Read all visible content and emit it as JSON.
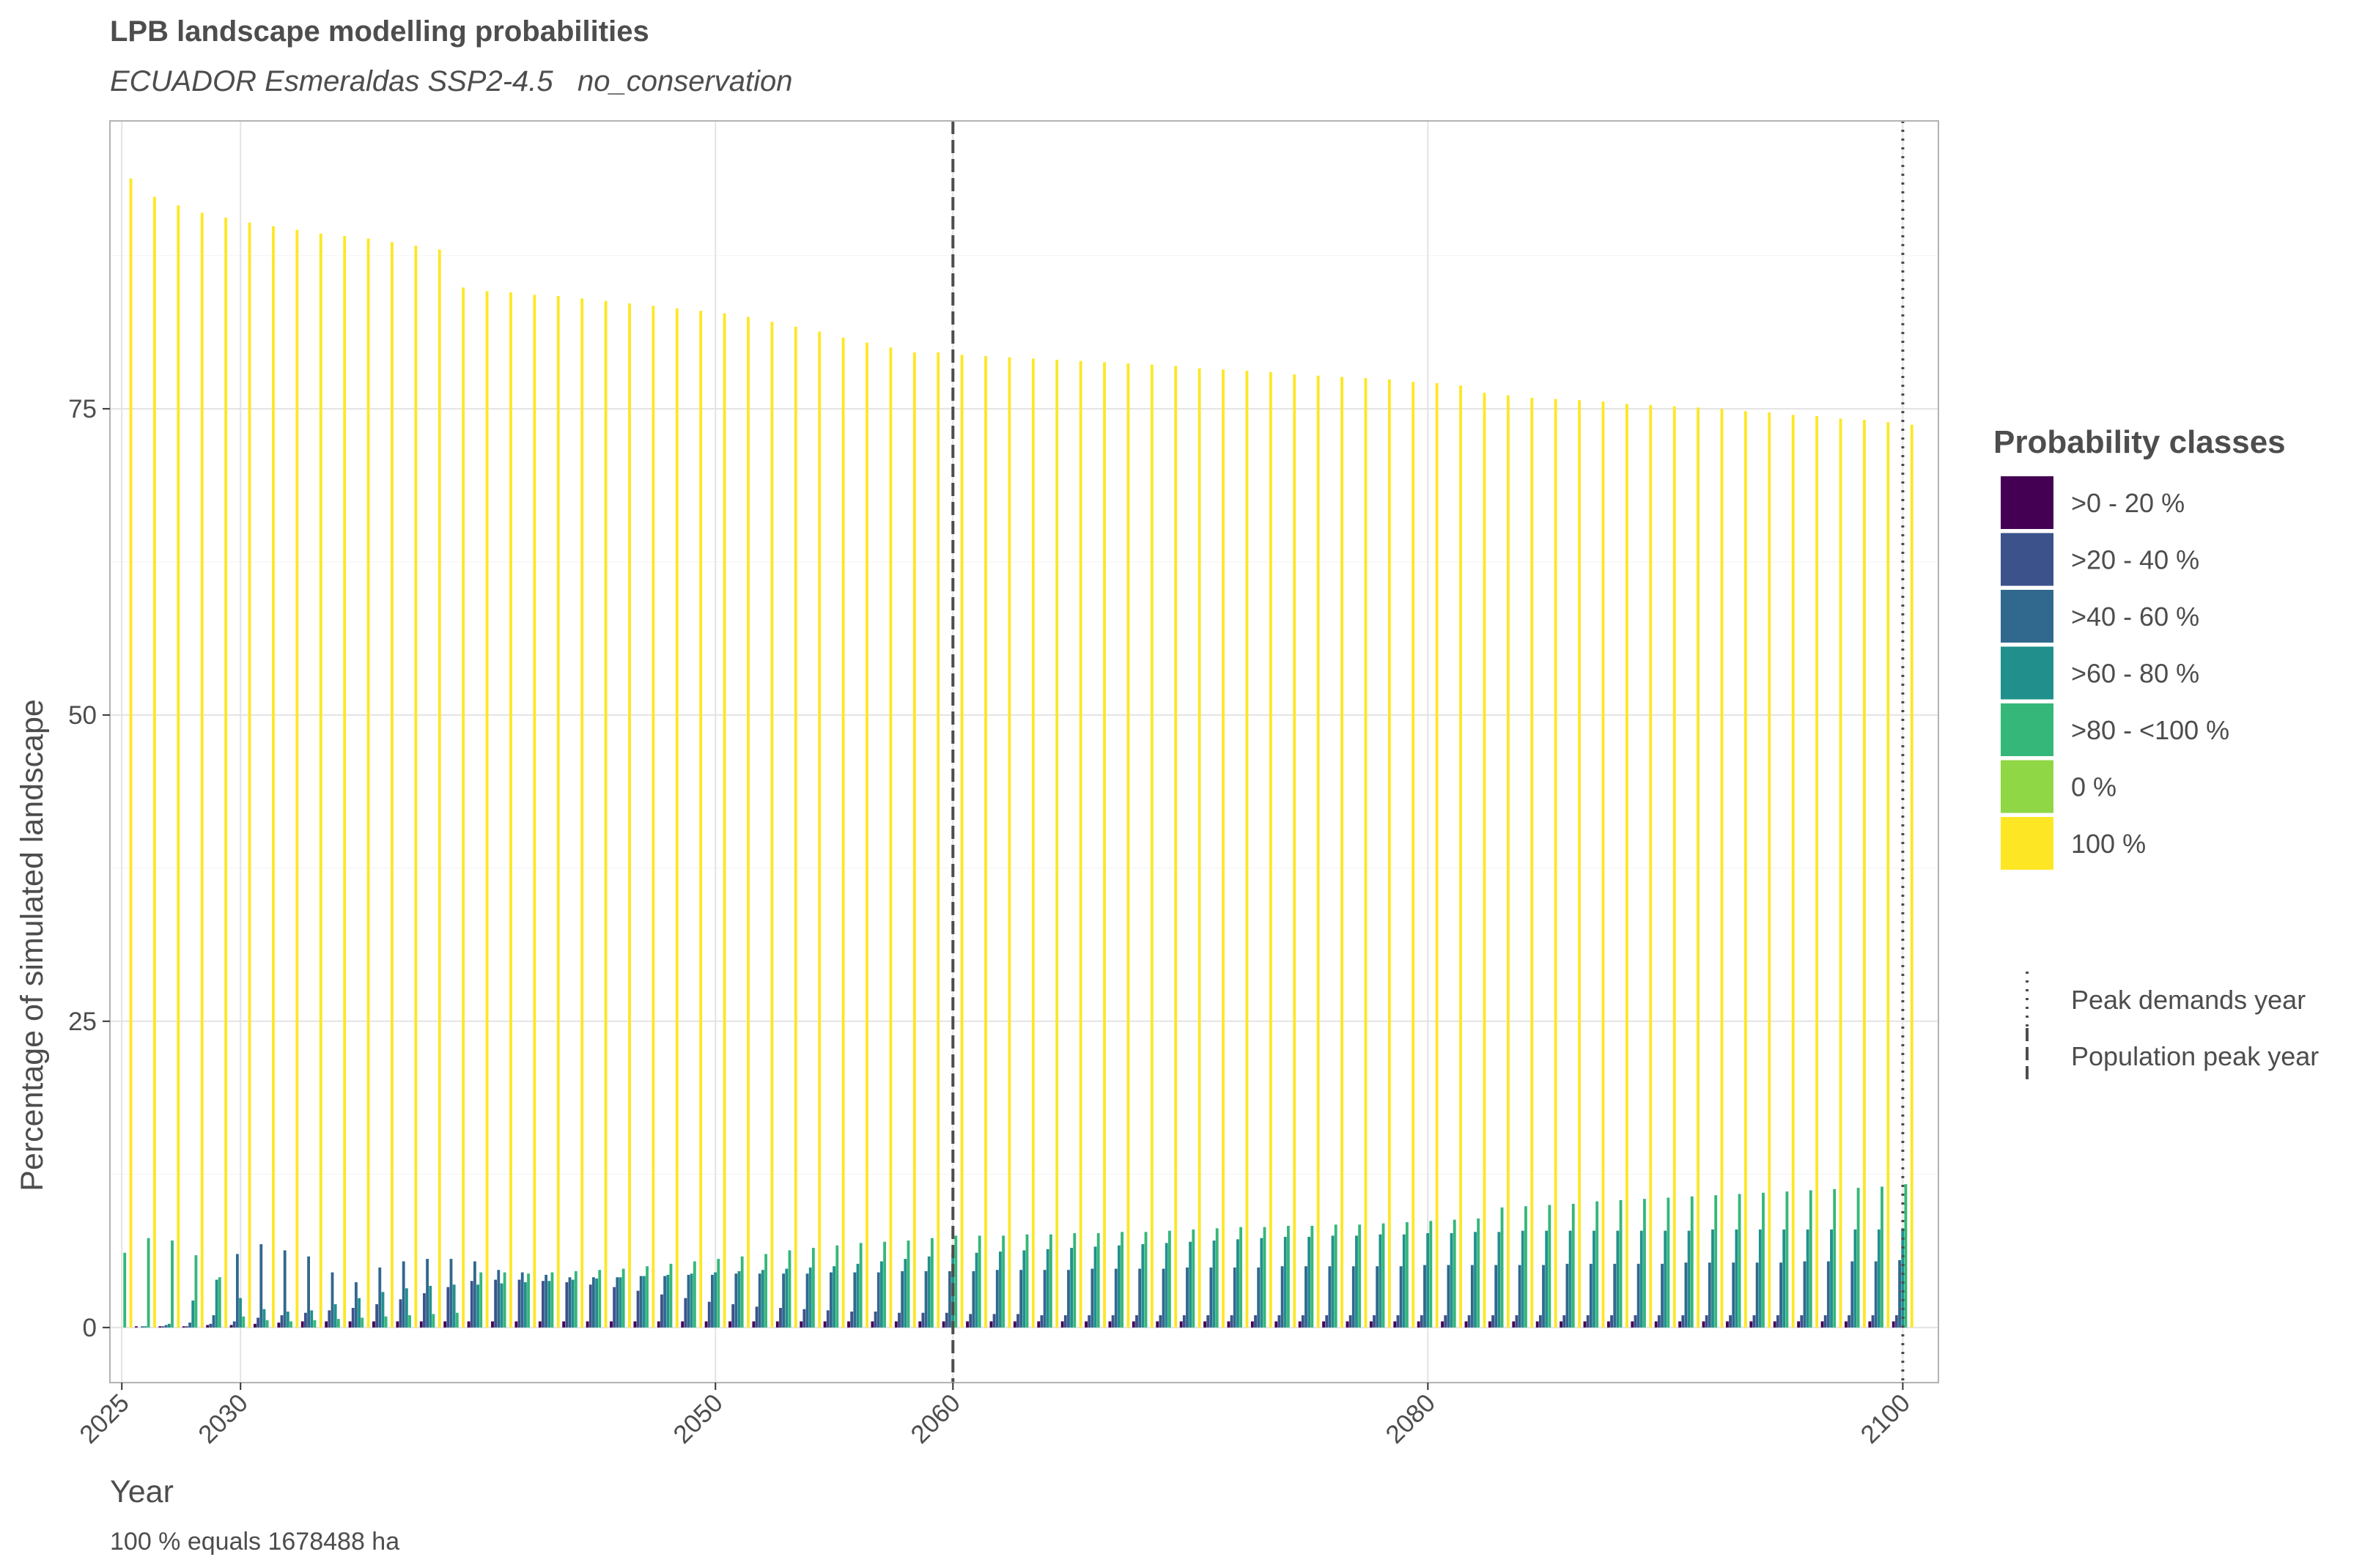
{
  "chart_data": {
    "type": "bar",
    "title": "LPB landscape modelling probabilities",
    "subtitle": "ECUADOR Esmeraldas SSP2-4.5   no_conservation",
    "xlabel": "Year",
    "ylabel": "Percentage of simulated landscape",
    "caption": "100 % equals 1678488 ha",
    "x_ticks": [
      "2025",
      "2030",
      "2050",
      "2060",
      "2080",
      "2100"
    ],
    "y_ticks": [
      "0",
      "25",
      "50",
      "75"
    ],
    "xlim": [
      2024.5,
      2101.5
    ],
    "ylim": [
      -4.5,
      98.5
    ],
    "grid": true,
    "legend_title": "Probability classes",
    "legend_position": "right",
    "vlines": [
      {
        "name": "Peak demands year",
        "x": 2100,
        "style": "dotted"
      },
      {
        "name": "Population peak year",
        "x": 2060,
        "style": "dashed"
      }
    ],
    "years": [
      2025,
      2026,
      2027,
      2028,
      2029,
      2030,
      2031,
      2032,
      2033,
      2034,
      2035,
      2036,
      2037,
      2038,
      2039,
      2040,
      2041,
      2042,
      2043,
      2044,
      2045,
      2046,
      2047,
      2048,
      2049,
      2050,
      2051,
      2052,
      2053,
      2054,
      2055,
      2056,
      2057,
      2058,
      2059,
      2060,
      2061,
      2062,
      2063,
      2064,
      2065,
      2066,
      2067,
      2068,
      2069,
      2070,
      2071,
      2072,
      2073,
      2074,
      2075,
      2076,
      2077,
      2078,
      2079,
      2080,
      2081,
      2082,
      2083,
      2084,
      2085,
      2086,
      2087,
      2088,
      2089,
      2090,
      2091,
      2092,
      2093,
      2094,
      2095,
      2096,
      2097,
      2098,
      2099,
      2100
    ],
    "series": [
      {
        "name": ">0 - 20 %",
        "color": "#440154",
        "values": [
          0,
          0.1,
          0.1,
          0.1,
          0.2,
          0.2,
          0.3,
          0.4,
          0.5,
          0.5,
          0.5,
          0.5,
          0.5,
          0.5,
          0.5,
          0.5,
          0.5,
          0.5,
          0.5,
          0.5,
          0.5,
          0.5,
          0.5,
          0.5,
          0.5,
          0.5,
          0.5,
          0.5,
          0.5,
          0.5,
          0.5,
          0.5,
          0.5,
          0.5,
          0.5,
          0.5,
          0.5,
          0.5,
          0.5,
          0.5,
          0.5,
          0.5,
          0.5,
          0.5,
          0.5,
          0.5,
          0.5,
          0.5,
          0.5,
          0.5,
          0.5,
          0.5,
          0.5,
          0.5,
          0.5,
          0.5,
          0.5,
          0.5,
          0.5,
          0.5,
          0.5,
          0.5,
          0.5,
          0.5,
          0.5,
          0.5,
          0.5,
          0.5,
          0.5,
          0.5,
          0.5,
          0.5,
          0.5,
          0.5,
          0.5,
          0.5
        ]
      },
      {
        "name": ">20 - 40 %",
        "color": "#3b528b",
        "values": [
          0,
          0,
          0.1,
          0.1,
          0.3,
          0.5,
          0.8,
          1.0,
          1.2,
          1.4,
          1.6,
          1.9,
          2.3,
          2.8,
          3.3,
          3.8,
          3.9,
          3.9,
          3.8,
          3.7,
          3.5,
          3.3,
          3.0,
          2.7,
          2.4,
          2.1,
          1.9,
          1.7,
          1.6,
          1.5,
          1.4,
          1.3,
          1.3,
          1.2,
          1.2,
          1.2,
          1.1,
          1.1,
          1.1,
          1.0,
          1.0,
          1.0,
          1.0,
          1.0,
          1.0,
          1.0,
          1.0,
          1.0,
          1.0,
          1.0,
          1.0,
          1.0,
          1.0,
          1.0,
          1.0,
          1.0,
          1.0,
          1.0,
          1.0,
          1.0,
          1.0,
          1.0,
          1.0,
          1.0,
          1.0,
          1.0,
          1.0,
          1.0,
          1.0,
          1.0,
          1.0,
          1.0,
          1.0,
          1.0,
          1.0,
          1.0
        ]
      },
      {
        "name": ">40 - 60 %",
        "color": "#31688e",
        "values": [
          0,
          0.1,
          0.2,
          0.4,
          1.0,
          6.0,
          6.8,
          6.3,
          5.8,
          4.5,
          3.7,
          4.9,
          5.4,
          5.6,
          5.6,
          5.4,
          4.7,
          4.5,
          4.3,
          4.1,
          4.1,
          4.1,
          4.2,
          4.2,
          4.3,
          4.3,
          4.4,
          4.4,
          4.4,
          4.4,
          4.5,
          4.5,
          4.5,
          4.6,
          4.6,
          4.6,
          4.6,
          4.7,
          4.7,
          4.7,
          4.7,
          4.8,
          4.8,
          4.8,
          4.8,
          4.9,
          4.9,
          4.9,
          4.9,
          5.0,
          5.0,
          5.0,
          5.0,
          5.0,
          5.0,
          5.1,
          5.1,
          5.1,
          5.1,
          5.1,
          5.1,
          5.2,
          5.2,
          5.2,
          5.2,
          5.2,
          5.3,
          5.3,
          5.3,
          5.3,
          5.3,
          5.4,
          5.4,
          5.4,
          5.4,
          5.5
        ]
      },
      {
        "name": ">60 - 80 %",
        "color": "#21908d",
        "values": [
          0,
          0.1,
          0.3,
          2.2,
          3.9,
          2.4,
          1.5,
          1.3,
          1.4,
          1.9,
          2.4,
          2.9,
          3.2,
          3.4,
          3.5,
          3.5,
          3.6,
          3.7,
          3.8,
          3.9,
          4.0,
          4.1,
          4.2,
          4.3,
          4.4,
          4.5,
          4.6,
          4.7,
          4.8,
          4.9,
          5.0,
          5.2,
          5.4,
          5.6,
          5.8,
          6.0,
          6.1,
          6.2,
          6.3,
          6.4,
          6.5,
          6.6,
          6.7,
          6.8,
          6.9,
          7.0,
          7.1,
          7.2,
          7.3,
          7.4,
          7.4,
          7.5,
          7.5,
          7.6,
          7.6,
          7.7,
          7.7,
          7.8,
          7.8,
          7.9,
          7.9,
          7.9,
          7.9,
          7.9,
          7.9,
          7.9,
          7.9,
          8.0,
          8.0,
          8.0,
          8.0,
          8.0,
          8.0,
          8.0,
          8.0,
          8.1
        ]
      },
      {
        "name": ">80 - <100 %",
        "color": "#35b779",
        "values": [
          6.1,
          7.3,
          7.1,
          5.9,
          4.1,
          0.9,
          0.6,
          0.5,
          0.6,
          0.7,
          0.8,
          0.9,
          1.0,
          1.1,
          1.2,
          4.5,
          4.5,
          4.4,
          4.5,
          4.6,
          4.7,
          4.8,
          5.0,
          5.2,
          5.4,
          5.6,
          5.8,
          6.0,
          6.3,
          6.5,
          6.7,
          6.9,
          7.0,
          7.1,
          7.3,
          7.5,
          7.5,
          7.5,
          7.6,
          7.6,
          7.7,
          7.7,
          7.8,
          7.8,
          7.9,
          8.0,
          8.1,
          8.2,
          8.2,
          8.3,
          8.3,
          8.4,
          8.4,
          8.5,
          8.6,
          8.7,
          8.8,
          8.9,
          9.8,
          9.9,
          10.0,
          10.1,
          10.3,
          10.4,
          10.5,
          10.6,
          10.7,
          10.8,
          10.9,
          11.0,
          11.1,
          11.2,
          11.3,
          11.4,
          11.5,
          11.7
        ]
      },
      {
        "name": "0 %",
        "color": "#8fd744",
        "values": [
          0,
          0,
          0,
          0,
          0,
          0,
          0,
          0,
          0,
          0,
          0,
          0,
          0,
          0,
          0,
          0,
          0,
          0,
          0,
          0,
          0,
          0,
          0,
          0,
          0,
          0,
          0,
          0,
          0,
          0,
          0,
          0,
          0,
          0,
          0,
          0,
          0,
          0,
          0,
          0,
          0,
          0,
          0,
          0,
          0,
          0,
          0,
          0,
          0,
          0,
          0,
          0,
          0,
          0,
          0,
          0,
          0,
          0,
          0,
          0,
          0,
          0,
          0,
          0,
          0,
          0,
          0,
          0,
          0,
          0,
          0,
          0,
          0,
          0,
          0,
          0
        ]
      },
      {
        "name": "100 %",
        "color": "#fde725",
        "values": [
          93.8,
          92.3,
          91.6,
          91.0,
          90.6,
          90.2,
          89.9,
          89.6,
          89.3,
          89.1,
          88.9,
          88.6,
          88.3,
          88.0,
          84.9,
          84.6,
          84.5,
          84.3,
          84.2,
          84.0,
          83.8,
          83.6,
          83.4,
          83.2,
          83.0,
          82.8,
          82.5,
          82.1,
          81.7,
          81.3,
          80.8,
          80.4,
          80.0,
          79.6,
          79.6,
          79.4,
          79.3,
          79.2,
          79.1,
          79.0,
          78.9,
          78.8,
          78.7,
          78.6,
          78.5,
          78.3,
          78.2,
          78.1,
          78.0,
          77.8,
          77.7,
          77.6,
          77.5,
          77.4,
          77.2,
          77.1,
          76.9,
          76.3,
          76.1,
          75.9,
          75.8,
          75.7,
          75.6,
          75.4,
          75.3,
          75.2,
          75.1,
          75.0,
          74.8,
          74.7,
          74.5,
          74.4,
          74.2,
          74.1,
          73.9,
          73.7
        ]
      }
    ]
  }
}
